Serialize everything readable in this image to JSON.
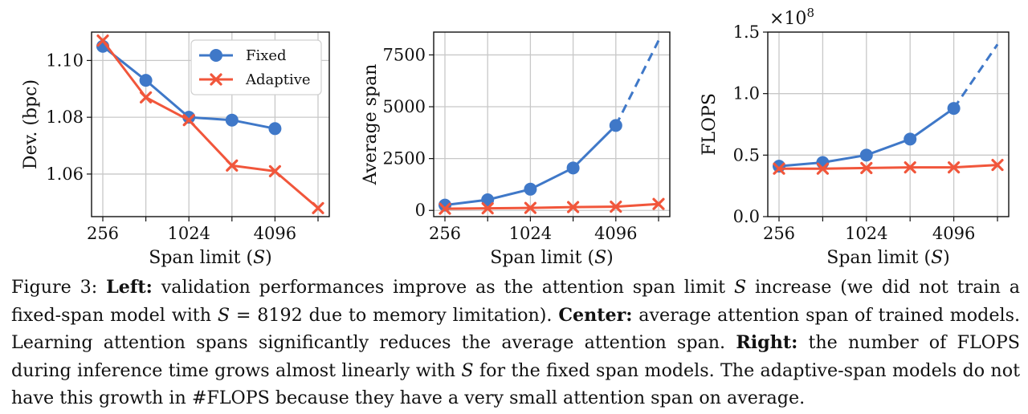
{
  "colors": {
    "fixed": "#3f78c8",
    "adaptive": "#f1563b"
  },
  "chart_data": [
    {
      "type": "line",
      "xscale": "log2",
      "x": [
        256,
        512,
        1024,
        2048,
        4096,
        8192
      ],
      "xticks": [
        256,
        1024,
        4096
      ],
      "xtick_labels": [
        "256",
        "1024",
        "4096"
      ],
      "xlabel": "Span limit (",
      "xlabel_var": "S",
      "xlabel_end": ")",
      "ylabel": "Dev. (bpc)",
      "ylim": [
        1.045,
        1.11
      ],
      "yticks": [
        1.06,
        1.08,
        1.1
      ],
      "ytick_labels": [
        "1.06",
        "1.08",
        "1.10"
      ],
      "grid": true,
      "legend_position": "top-right",
      "series": [
        {
          "name": "Fixed",
          "marker": "circle",
          "x": [
            256,
            512,
            1024,
            2048,
            4096
          ],
          "values": [
            1.105,
            1.093,
            1.08,
            1.079,
            1.076
          ]
        },
        {
          "name": "Adaptive",
          "marker": "x",
          "x": [
            256,
            512,
            1024,
            2048,
            4096,
            8192
          ],
          "values": [
            1.107,
            1.087,
            1.079,
            1.063,
            1.061,
            1.048
          ]
        }
      ]
    },
    {
      "type": "line",
      "xscale": "log2",
      "x": [
        256,
        512,
        1024,
        2048,
        4096,
        8192
      ],
      "xticks": [
        256,
        1024,
        4096
      ],
      "xtick_labels": [
        "256",
        "1024",
        "4096"
      ],
      "xlabel": "Span limit (",
      "xlabel_var": "S",
      "xlabel_end": ")",
      "ylabel": "Average span",
      "ylim": [
        -300,
        8600
      ],
      "yticks": [
        0,
        2500,
        5000,
        7500
      ],
      "ytick_labels": [
        "0",
        "2500",
        "5000",
        "7500"
      ],
      "grid": true,
      "series": [
        {
          "marker": "circle",
          "x": [
            256,
            512,
            1024,
            2048,
            4096
          ],
          "values": [
            256,
            512,
            1024,
            2048,
            4096
          ],
          "dashed_extension": {
            "x": [
              4096,
              8192
            ],
            "values": [
              4096,
              8192
            ]
          }
        },
        {
          "marker": "x",
          "x": [
            256,
            512,
            1024,
            2048,
            4096,
            8192
          ],
          "values": [
            80,
            100,
            120,
            160,
            180,
            310
          ]
        }
      ]
    },
    {
      "type": "line",
      "xscale": "log2",
      "x": [
        256,
        512,
        1024,
        2048,
        4096,
        8192
      ],
      "xticks": [
        256,
        1024,
        4096
      ],
      "xtick_labels": [
        "256",
        "1024",
        "4096"
      ],
      "xlabel": "Span limit (",
      "xlabel_var": "S",
      "xlabel_end": ")",
      "ylabel": "FLOPS",
      "yscale_label": "×10",
      "yscale_exp": "8",
      "ylim": [
        0,
        1.5
      ],
      "yticks": [
        0.0,
        0.5,
        1.0,
        1.5
      ],
      "ytick_labels": [
        "0.0",
        "0.5",
        "1.0",
        "1.5"
      ],
      "grid": true,
      "series": [
        {
          "marker": "circle",
          "x": [
            256,
            512,
            1024,
            2048,
            4096
          ],
          "values": [
            0.41,
            0.44,
            0.5,
            0.63,
            0.88
          ],
          "dashed_extension": {
            "x": [
              4096,
              8192
            ],
            "values": [
              0.88,
              1.4
            ]
          }
        },
        {
          "marker": "x",
          "x": [
            256,
            512,
            1024,
            2048,
            4096,
            8192
          ],
          "values": [
            0.39,
            0.39,
            0.395,
            0.4,
            0.4,
            0.42
          ]
        }
      ]
    }
  ],
  "caption": {
    "label": "Figure 3: ",
    "left_label": "Left:",
    "left_text_1": " validation performances improve as the attention span limit ",
    "var_s": "S",
    "left_text_2": " increase (we did not train a fixed-span model with ",
    "left_eq": " = 8192 due to memory limitation). ",
    "center_label": "Center:",
    "center_text": " average attention span of trained models. Learning attention spans significantly reduces the average attention span. ",
    "right_label": "Right:",
    "right_text_1": " the number of FLOPS during inference time grows almost linearly with ",
    "right_text_2": " for the fixed span models. The adaptive-span models do not have this growth in #FLOPS because they have a very small attention span on average."
  }
}
